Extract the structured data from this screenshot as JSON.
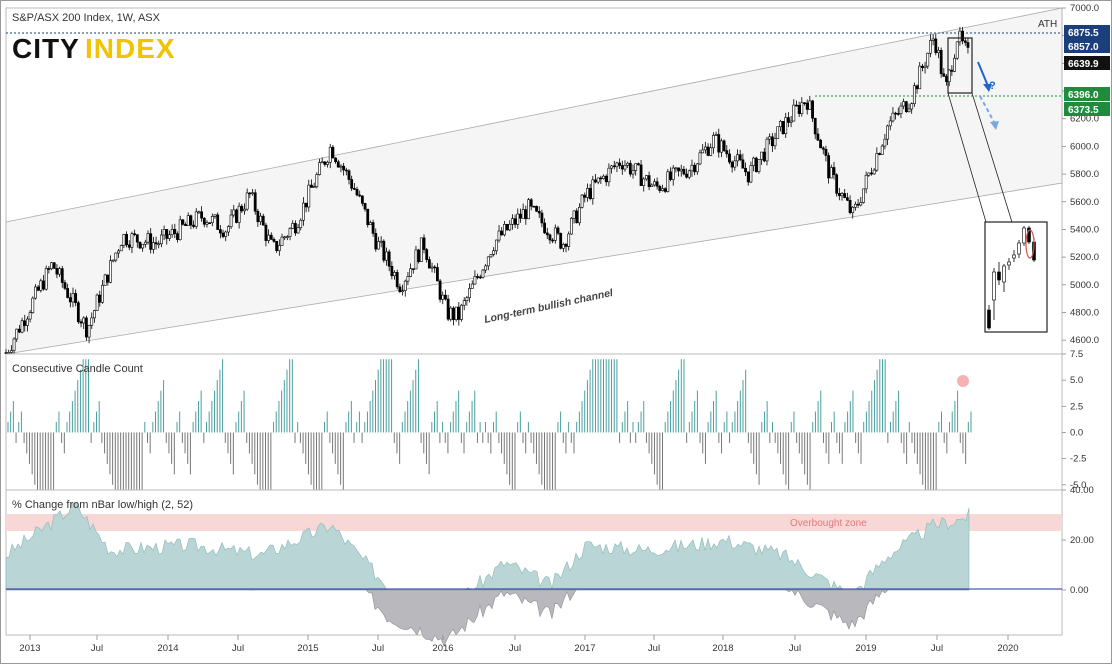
{
  "header": {
    "title": "S&P/ASX 200 Index, 1W, ASX",
    "logo": "CITY INDEX",
    "logo_part1": "CITY",
    "logo_part2": "INDEX"
  },
  "colors": {
    "up": "#ffffff",
    "down": "#000000",
    "teal": "#4a9f9f",
    "accent_green": "#1e8c3c",
    "accent_blue": "#1a66cc",
    "overbought": "#f8d7d7",
    "ath_line": "#1a3f7a",
    "area_fill": "#b9d5d5",
    "area_neg": "#b8b8bd"
  },
  "price_panel": {
    "annotations": {
      "ath": "ATH",
      "channel": "Long-term bullish channel",
      "question": "?"
    },
    "tags": [
      {
        "value": "6875.5",
        "style": "dark"
      },
      {
        "value": "6857.0",
        "style": "dark"
      },
      {
        "value": "6639.9",
        "style": "black"
      },
      {
        "value": "6396.0",
        "style": "green"
      },
      {
        "value": "6373.5",
        "style": "green"
      }
    ],
    "yticks": [
      "7000.0",
      "6800.0",
      "6600.0",
      "6400.0",
      "6200.0",
      "6000.0",
      "5800.0",
      "5600.0",
      "5400.0",
      "5200.0",
      "5000.0",
      "4800.0",
      "4600.0"
    ]
  },
  "count_panel": {
    "title": "Consecutive Candle Count",
    "yticks": [
      "7.5",
      "5.0",
      "2.5",
      "0.0",
      "-2.5",
      "-5.0"
    ]
  },
  "pct_panel": {
    "title": "% Change from nBar low/high (2, 52)",
    "zone_label": "Overbought zone",
    "yticks": [
      "40.00",
      "20.00",
      "0.00"
    ]
  },
  "time_axis": {
    "labels": [
      "2013",
      "Jul",
      "2014",
      "Jul",
      "2015",
      "Jul",
      "2016",
      "Jul",
      "2017",
      "Jul",
      "2018",
      "Jul",
      "2019",
      "Jul",
      "2020"
    ]
  },
  "chart_data": [
    {
      "type": "candlestick",
      "title": "S&P/ASX 200 Index, 1W, ASX",
      "ylim": [
        4500,
        7000
      ],
      "x_range": [
        "2012-11",
        "2019-10"
      ],
      "path": [
        [
          "2012-11",
          4510
        ],
        [
          "2013-03",
          5150
        ],
        [
          "2013-06",
          4680
        ],
        [
          "2013-09",
          5350
        ],
        [
          "2013-12",
          5300
        ],
        [
          "2014-04",
          5500
        ],
        [
          "2014-06",
          5400
        ],
        [
          "2014-08",
          5650
        ],
        [
          "2014-10",
          5250
        ],
        [
          "2014-12",
          5450
        ],
        [
          "2015-03",
          6000
        ],
        [
          "2015-05",
          5700
        ],
        [
          "2015-07",
          5300
        ],
        [
          "2015-09",
          5000
        ],
        [
          "2015-11",
          5300
        ],
        [
          "2016-01",
          4800
        ],
        [
          "2016-02",
          4770
        ],
        [
          "2016-05",
          5300
        ],
        [
          "2016-08",
          5550
        ],
        [
          "2016-11",
          5300
        ],
        [
          "2017-01",
          5650
        ],
        [
          "2017-04",
          5900
        ],
        [
          "2017-07",
          5700
        ],
        [
          "2017-10",
          5850
        ],
        [
          "2017-12",
          6050
        ],
        [
          "2018-03",
          5800
        ],
        [
          "2018-06",
          6150
        ],
        [
          "2018-08",
          6350
        ],
        [
          "2018-10",
          5800
        ],
        [
          "2018-12",
          5500
        ],
        [
          "2019-03",
          6150
        ],
        [
          "2019-05",
          6350
        ],
        [
          "2019-07",
          6800
        ],
        [
          "2019-08",
          6400
        ],
        [
          "2019-09",
          6800
        ],
        [
          "2019-10",
          6640
        ]
      ],
      "ath": 6875.5,
      "last": 6639.9,
      "support": [
        6396.0,
        6373.5
      ],
      "annotations": [
        "ATH",
        "Long-term bullish channel",
        "?"
      ]
    },
    {
      "type": "bar",
      "title": "Consecutive Candle Count",
      "ylim": [
        -5,
        7.5
      ],
      "note": "alternating positive/negative streak counts; latest spike near 5"
    },
    {
      "type": "area",
      "title": "% Change from nBar low/high (2, 52)",
      "ylim": [
        -15,
        40
      ],
      "overbought_zone": [
        24,
        30
      ],
      "overbought_label": "Overbought zone",
      "path": [
        [
          "2012-11",
          8
        ],
        [
          "2013-05",
          28
        ],
        [
          "2013-08",
          10
        ],
        [
          "2014-03",
          12
        ],
        [
          "2014-09",
          8
        ],
        [
          "2015-03",
          20
        ],
        [
          "2015-08",
          -5
        ],
        [
          "2016-01",
          -14
        ],
        [
          "2016-06",
          5
        ],
        [
          "2016-10",
          -4
        ],
        [
          "2017-01",
          12
        ],
        [
          "2017-06",
          10
        ],
        [
          "2017-10",
          12
        ],
        [
          "2018-01",
          14
        ],
        [
          "2018-06",
          8
        ],
        [
          "2018-11",
          -6
        ],
        [
          "2018-12",
          -8
        ],
        [
          "2019-03",
          8
        ],
        [
          "2019-07",
          20
        ],
        [
          "2019-09",
          22
        ],
        [
          "2019-10",
          24
        ]
      ]
    }
  ]
}
